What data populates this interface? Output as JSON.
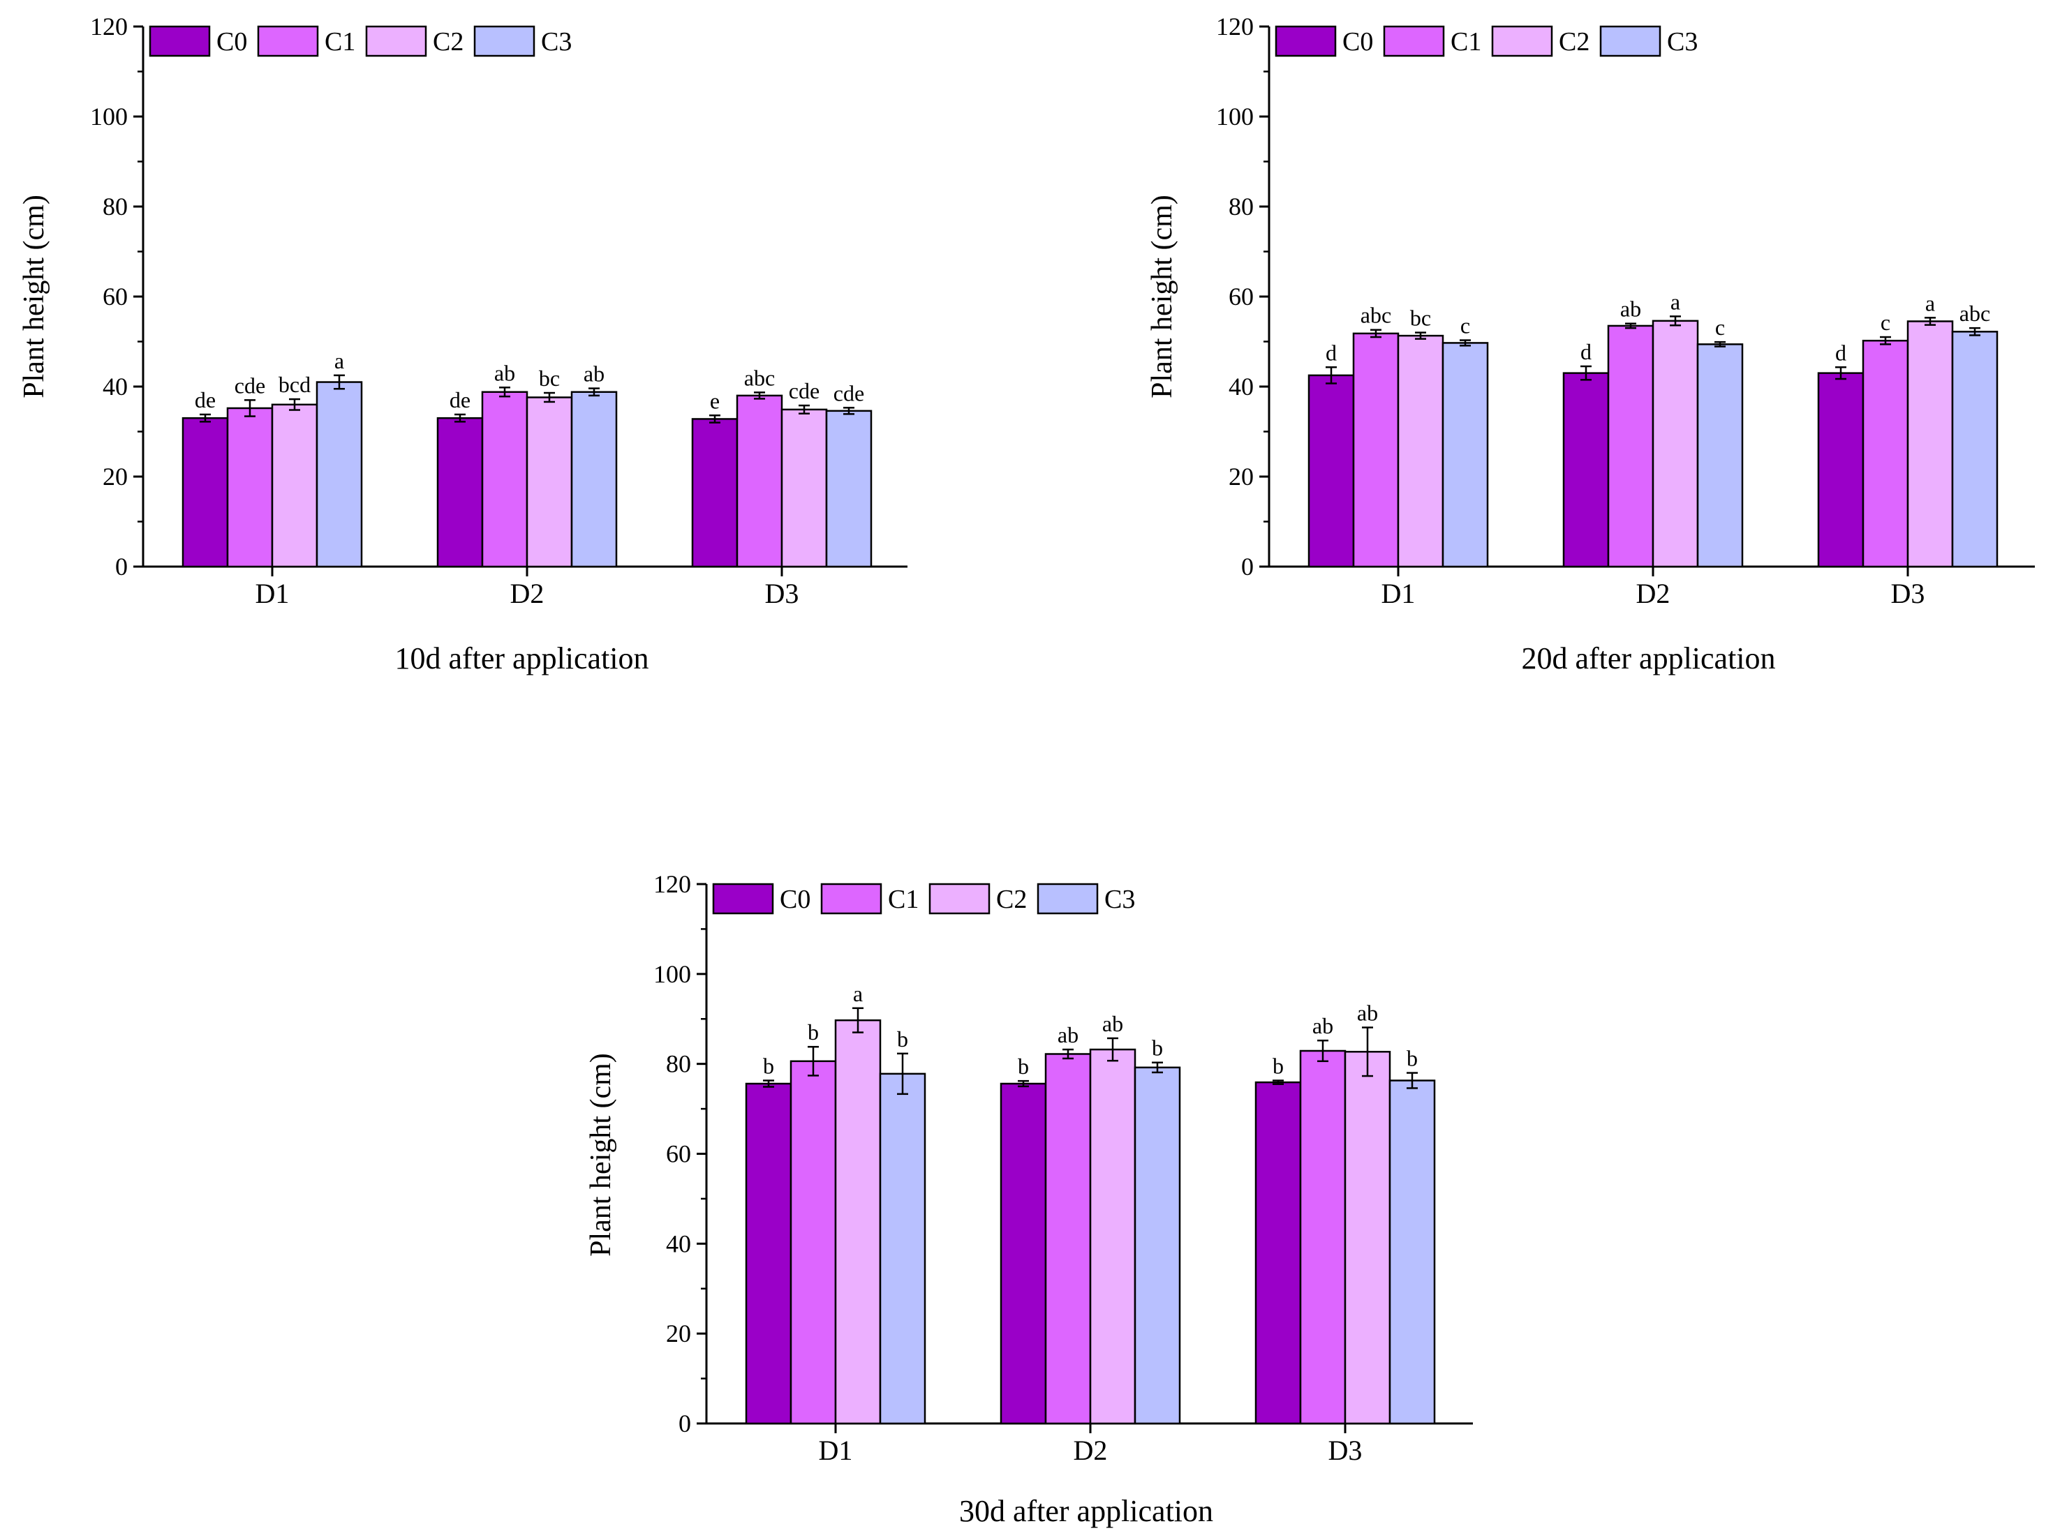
{
  "colors": {
    "C0": "#9a00c8",
    "C1": "#dd66ff",
    "C2": "#ecb0ff",
    "C3": "#b8c0ff",
    "axis": "#000000"
  },
  "legend": [
    "C0",
    "C1",
    "C2",
    "C3"
  ],
  "chart_data": [
    {
      "type": "bar",
      "title": "10d after application",
      "xlabel": "",
      "ylabel": "Plant height (cm)",
      "ylim": [
        0,
        120
      ],
      "yticks": [
        "0",
        "20",
        "40",
        "60",
        "80",
        "100",
        "120"
      ],
      "categories": [
        "D1",
        "D2",
        "D3"
      ],
      "series": [
        {
          "name": "C0",
          "values": [
            33.0,
            33.0,
            32.8
          ],
          "errors": [
            0.8,
            0.8,
            0.8
          ],
          "labels": [
            "de",
            "de",
            "e"
          ]
        },
        {
          "name": "C1",
          "values": [
            35.2,
            38.8,
            38.0
          ],
          "errors": [
            1.8,
            1.0,
            0.7
          ],
          "labels": [
            "cde",
            "ab",
            "abc"
          ]
        },
        {
          "name": "C2",
          "values": [
            36.0,
            37.6,
            34.9
          ],
          "errors": [
            1.2,
            1.0,
            0.9
          ],
          "labels": [
            "bcd",
            "bc",
            "cde"
          ]
        },
        {
          "name": "C3",
          "values": [
            41.0,
            38.8,
            34.6
          ],
          "errors": [
            1.5,
            0.8,
            0.7
          ],
          "labels": [
            "a",
            "ab",
            "cde"
          ]
        }
      ]
    },
    {
      "type": "bar",
      "title": "20d after application",
      "xlabel": "",
      "ylabel": "Plant height (cm)",
      "ylim": [
        0,
        120
      ],
      "yticks": [
        "0",
        "20",
        "40",
        "60",
        "80",
        "100",
        "120"
      ],
      "categories": [
        "D1",
        "D2",
        "D3"
      ],
      "series": [
        {
          "name": "C0",
          "values": [
            42.5,
            43.0,
            43.0
          ],
          "errors": [
            1.8,
            1.5,
            1.3
          ],
          "labels": [
            "d",
            "d",
            "d"
          ]
        },
        {
          "name": "C1",
          "values": [
            51.8,
            53.5,
            50.2
          ],
          "errors": [
            0.8,
            0.5,
            0.8
          ],
          "labels": [
            "abc",
            "ab",
            "c"
          ]
        },
        {
          "name": "C2",
          "values": [
            51.3,
            54.6,
            54.5
          ],
          "errors": [
            0.7,
            1.0,
            0.8
          ],
          "labels": [
            "bc",
            "a",
            "a"
          ]
        },
        {
          "name": "C3",
          "values": [
            49.7,
            49.4,
            52.2
          ],
          "errors": [
            0.6,
            0.5,
            0.8
          ],
          "labels": [
            "c",
            "c",
            "abc"
          ]
        }
      ]
    },
    {
      "type": "bar",
      "title": "30d after application",
      "xlabel": "",
      "ylabel": "Plant height (cm)",
      "ylim": [
        0,
        120
      ],
      "yticks": [
        "0",
        "20",
        "40",
        "60",
        "80",
        "100",
        "120"
      ],
      "categories": [
        "D1",
        "D2",
        "D3"
      ],
      "series": [
        {
          "name": "C0",
          "values": [
            75.6,
            75.6,
            75.9
          ],
          "errors": [
            0.7,
            0.6,
            0.4
          ],
          "labels": [
            "b",
            "b",
            "b"
          ]
        },
        {
          "name": "C1",
          "values": [
            80.6,
            82.2,
            82.9
          ],
          "errors": [
            3.2,
            1.0,
            2.3
          ],
          "labels": [
            "b",
            "ab",
            "ab"
          ]
        },
        {
          "name": "C2",
          "values": [
            89.7,
            83.2,
            82.7
          ],
          "errors": [
            2.7,
            2.5,
            5.4
          ],
          "labels": [
            "a",
            "ab",
            "ab"
          ]
        },
        {
          "name": "C3",
          "values": [
            77.8,
            79.2,
            76.3
          ],
          "errors": [
            4.5,
            1.1,
            1.7
          ],
          "labels": [
            "b",
            "b",
            "b"
          ]
        }
      ]
    }
  ]
}
